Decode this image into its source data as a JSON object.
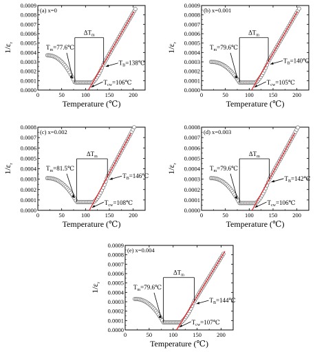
{
  "chart_data": [
    {
      "type": "scatter",
      "panel_label": "(a) x=0",
      "xlabel": "Temperature (℃)",
      "ylabel": "1/ε",
      "ylabel_sub": "r",
      "xlim": [
        0,
        225
      ],
      "ylim": [
        0,
        0.0009
      ],
      "xticks": [
        "0",
        "50",
        "100",
        "150",
        "200"
      ],
      "yticks": [
        "0.0000",
        "0.0001",
        "0.0002",
        "0.0003",
        "0.0004",
        "0.0005",
        "0.0006",
        "0.0007",
        "0.0008",
        "0.0009"
      ],
      "grid": false,
      "Tm_label": "T",
      "Tm_sub": "m",
      "Tm_value": "=77.6℃",
      "Tm": 77.6,
      "TB_label": "T",
      "TB_sub": "B",
      "TB_value": "=138℃",
      "TB": 138,
      "Tcw_label": "T",
      "Tcw_sub": "cw",
      "Tcw_value": "=106℃",
      "Tcw": 106,
      "dT_label": "ΔT",
      "dT_sub": "m",
      "fit_line": {
        "x0": 106,
        "slope": 8.75e-06
      },
      "series": [
        {
          "min_y": 8e-05,
          "start_y": 0.00037,
          "end_x": 205
        }
      ]
    },
    {
      "type": "scatter",
      "panel_label": "(b) x=0.001",
      "xlabel": "Temperature (℃)",
      "ylabel": "1/ε",
      "ylabel_sub": "r",
      "xlim": [
        0,
        225
      ],
      "ylim": [
        0,
        0.0009
      ],
      "xticks": [
        "0",
        "50",
        "100",
        "150",
        "200"
      ],
      "yticks": [
        "0.0000",
        "0.0001",
        "0.0002",
        "0.0003",
        "0.0004",
        "0.0005",
        "0.0006",
        "0.0007",
        "0.0008",
        "0.0009"
      ],
      "grid": false,
      "Tm_label": "T",
      "Tm_sub": "m",
      "Tm_value": "=79.6℃",
      "Tm": 79.6,
      "TB_label": "T",
      "TB_sub": "B",
      "TB_value": "=140℃",
      "TB": 140,
      "Tcw_label": "T",
      "Tcw_sub": "cw",
      "Tcw_value": "=105℃",
      "Tcw": 105,
      "dT_label": "ΔT",
      "dT_sub": "m",
      "fit_line": {
        "x0": 105,
        "slope": 8.7e-06
      },
      "series": [
        {
          "min_y": 8e-05,
          "start_y": 0.0003,
          "end_x": 205
        }
      ]
    },
    {
      "type": "scatter",
      "panel_label": "(c) x=0.002",
      "xlabel": "Temperature (℃)",
      "ylabel": "1/ε",
      "ylabel_sub": "r",
      "xlim": [
        0,
        225
      ],
      "ylim": [
        0,
        0.0008
      ],
      "xticks": [
        "0",
        "50",
        "100",
        "150",
        "200"
      ],
      "yticks": [
        "0.0000",
        "0.0001",
        "0.0002",
        "0.0003",
        "0.0004",
        "0.0005",
        "0.0006",
        "0.0007",
        "0.0008"
      ],
      "grid": false,
      "Tm_label": "T",
      "Tm_sub": "m",
      "Tm_value": "=81.5℃",
      "Tm": 81.5,
      "TB_label": "T",
      "TB_sub": "B",
      "TB_value": "=146℃",
      "TB": 146,
      "Tcw_label": "T",
      "Tcw_sub": "cw",
      "Tcw_value": "=108℃",
      "Tcw": 108,
      "dT_label": "ΔT",
      "dT_sub": "m",
      "fit_line": {
        "x0": 108,
        "slope": 8.5e-06
      },
      "series": [
        {
          "min_y": 8e-05,
          "start_y": 0.00031,
          "end_x": 205
        }
      ]
    },
    {
      "type": "scatter",
      "panel_label": "(d) x=0.003",
      "xlabel": "Temperature (℃)",
      "ylabel": "1/ε",
      "ylabel_sub": "r",
      "xlim": [
        0,
        225
      ],
      "ylim": [
        0,
        0.0008
      ],
      "xticks": [
        "0",
        "50",
        "100",
        "150",
        "200"
      ],
      "yticks": [
        "0.0000",
        "0.0001",
        "0.0002",
        "0.0003",
        "0.0004",
        "0.0005",
        "0.0006",
        "0.0007",
        "0.0008"
      ],
      "grid": false,
      "Tm_label": "T",
      "Tm_sub": "m",
      "Tm_value": "=79.6℃",
      "Tm": 79.6,
      "TB_label": "T",
      "TB_sub": "B",
      "TB_value": "=142℃",
      "TB": 142,
      "Tcw_label": "T",
      "Tcw_sub": "cw",
      "Tcw_value": "=106℃",
      "Tcw": 106,
      "dT_label": "ΔT",
      "dT_sub": "m",
      "fit_line": {
        "x0": 106,
        "slope": 8.3e-06
      },
      "series": [
        {
          "min_y": 7e-05,
          "start_y": 0.00031,
          "end_x": 205
        }
      ]
    },
    {
      "type": "scatter",
      "panel_label": "(e) x=0.004",
      "xlabel": "Temperature (℃)",
      "ylabel": "1/ε",
      "ylabel_sub": "r",
      "xlim": [
        0,
        225
      ],
      "ylim": [
        0,
        0.0009
      ],
      "xticks": [
        "0",
        "50",
        "100",
        "150",
        "200"
      ],
      "yticks": [
        "0.0000",
        "0.0001",
        "0.0002",
        "0.0003",
        "0.0004",
        "0.0005",
        "0.0006",
        "0.0007",
        "0.0008",
        "0.0009"
      ],
      "grid": false,
      "Tm_label": "T",
      "Tm_sub": "m",
      "Tm_value": "=79.6℃",
      "Tm": 79.6,
      "TB_label": "T",
      "TB_sub": "B",
      "TB_value": "=144℃",
      "TB": 144,
      "Tcw_label": "T",
      "Tcw_sub": "cw",
      "Tcw_value": "=107℃",
      "Tcw": 107,
      "dT_label": "ΔT",
      "dT_sub": "m",
      "fit_line": {
        "x0": 107,
        "slope": 8.3e-06
      },
      "series": [
        {
          "min_y": 8e-05,
          "start_y": 0.00033,
          "end_x": 205
        }
      ]
    }
  ],
  "colors": {
    "fit_line": "#e8191f",
    "axis": "#000000",
    "marker": "#6b6b6b"
  }
}
